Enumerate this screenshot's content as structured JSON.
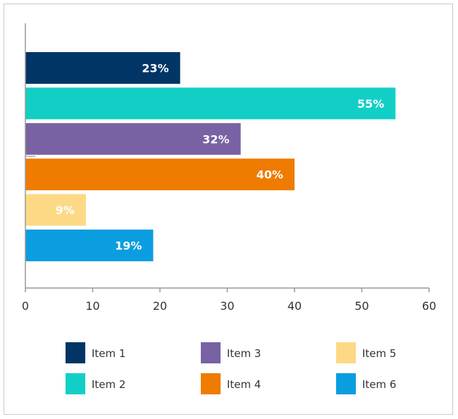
{
  "chart_data": {
    "type": "bar",
    "orientation": "horizontal",
    "categories": [
      "Item 1",
      "Item 2",
      "Item 3",
      "Item 4",
      "Item 5",
      "Item 6"
    ],
    "values": [
      23,
      55,
      32,
      40,
      9,
      19
    ],
    "data_labels": [
      "23%",
      "55%",
      "32%",
      "40%",
      "9%",
      "19%"
    ],
    "colors": [
      "#003566",
      "#12cfc6",
      "#7862a3",
      "#ef7b00",
      "#fdd985",
      "#0a9de0"
    ],
    "xlim": [
      0,
      60
    ],
    "xticks": [
      0,
      10,
      20,
      30,
      40,
      50,
      60
    ],
    "xtick_labels": [
      "0",
      "10",
      "20",
      "30",
      "40",
      "50",
      "60"
    ],
    "grid": false,
    "legend": {
      "position": "bottom",
      "columns": 3,
      "entries": [
        "Item 1",
        "Item 2",
        "Item 3",
        "Item 4",
        "Item 5",
        "Item 6"
      ]
    }
  }
}
